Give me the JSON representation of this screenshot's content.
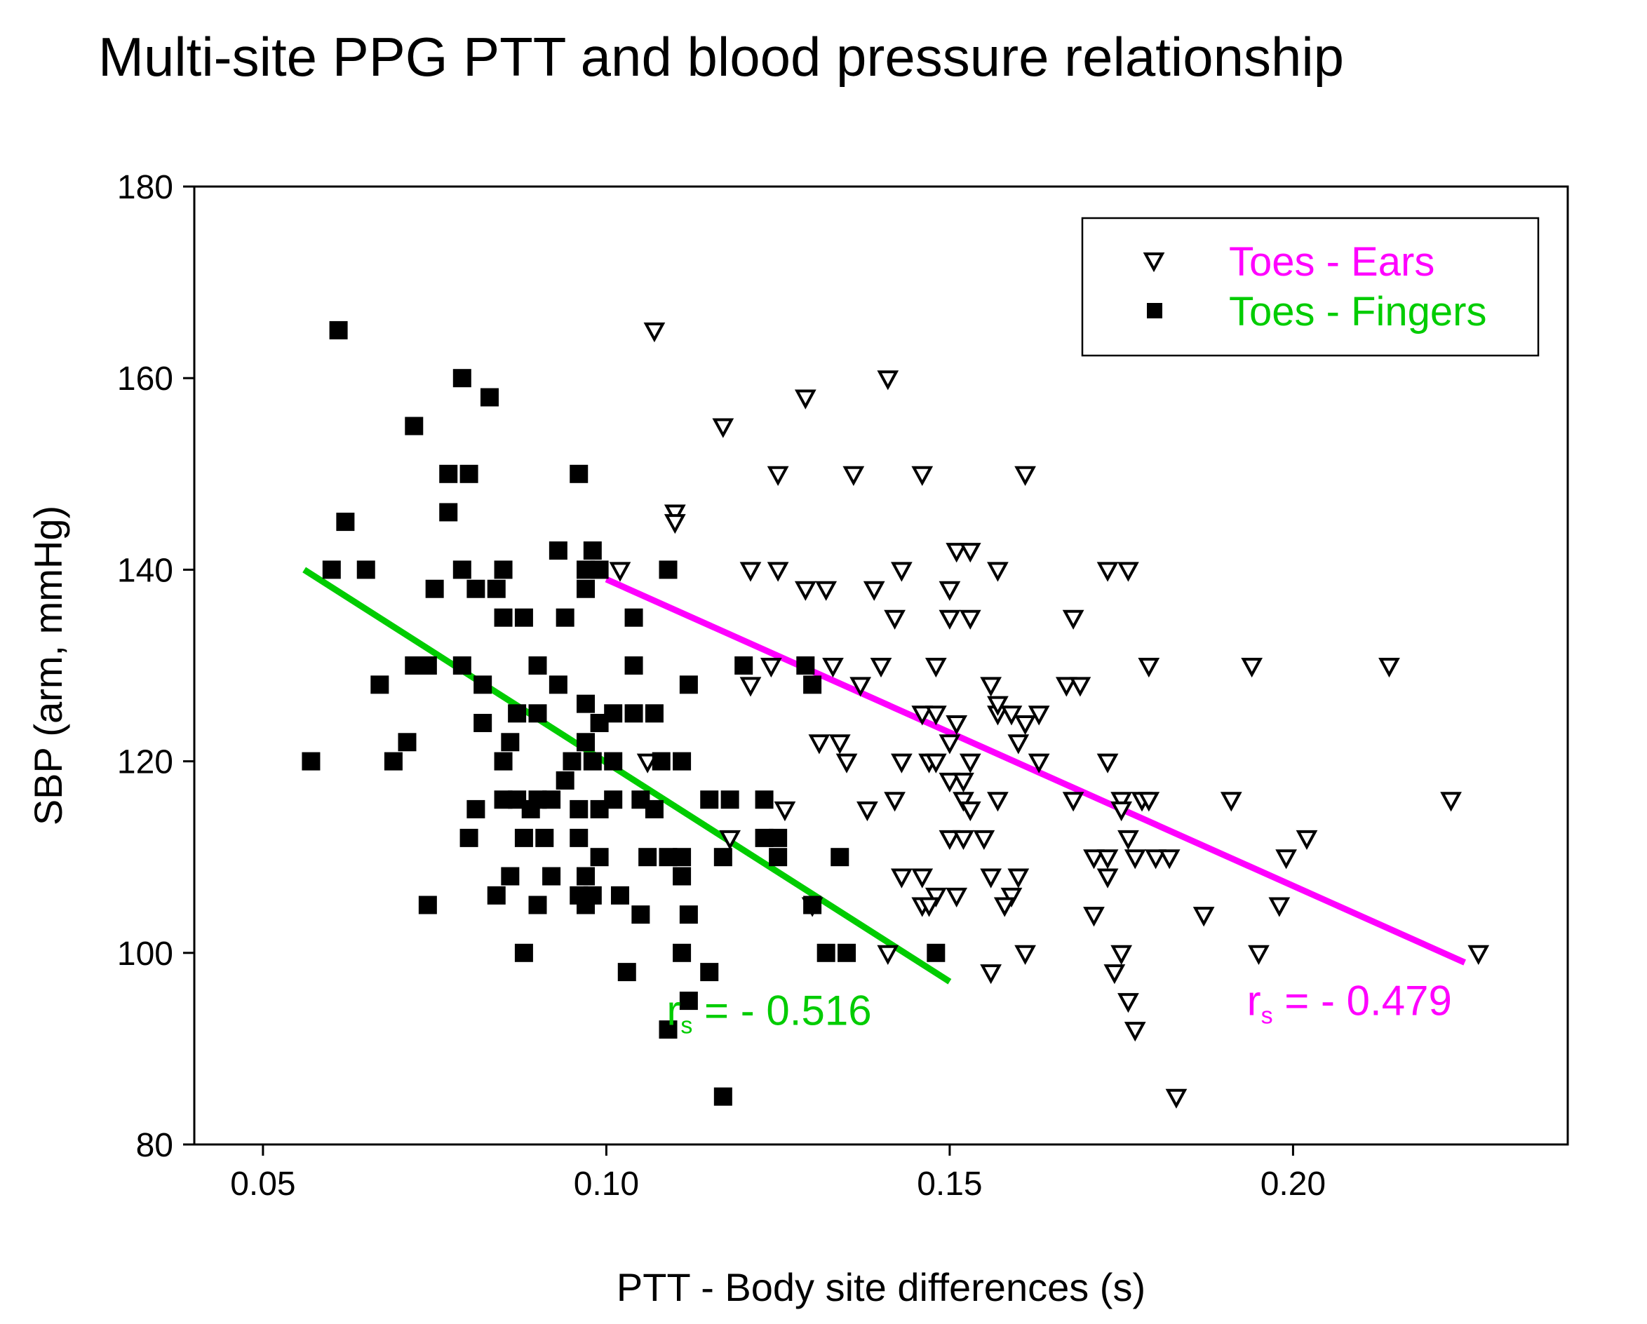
{
  "chart_data": {
    "type": "scatter",
    "title": "Multi-site PPG PTT and blood pressure relationship",
    "xlabel": "PTT - Body site differences (s)",
    "ylabel": "SBP (arm, mmHg)",
    "xlim": [
      0.04,
      0.24
    ],
    "ylim": [
      80,
      180
    ],
    "xticks": [
      0.05,
      0.1,
      0.15,
      0.2
    ],
    "xtick_labels": [
      "0.05",
      "0.10",
      "0.15",
      "0.20"
    ],
    "yticks": [
      80,
      100,
      120,
      140,
      160,
      180
    ],
    "ytick_labels": [
      "80",
      "100",
      "120",
      "140",
      "160",
      "180"
    ],
    "grid": false,
    "legend_position": "top-right",
    "series": [
      {
        "name": "Toes - Ears",
        "marker": "triangle-down-open",
        "label_color": "#ff00ff",
        "points": [
          [
            0.107,
            165
          ],
          [
            0.141,
            160
          ],
          [
            0.129,
            158
          ],
          [
            0.117,
            155
          ],
          [
            0.125,
            150
          ],
          [
            0.136,
            150
          ],
          [
            0.146,
            150
          ],
          [
            0.161,
            150
          ],
          [
            0.11,
            146
          ],
          [
            0.11,
            145
          ],
          [
            0.151,
            142
          ],
          [
            0.153,
            142
          ],
          [
            0.102,
            140
          ],
          [
            0.121,
            140
          ],
          [
            0.125,
            140
          ],
          [
            0.143,
            140
          ],
          [
            0.157,
            140
          ],
          [
            0.173,
            140
          ],
          [
            0.176,
            140
          ],
          [
            0.129,
            138
          ],
          [
            0.132,
            138
          ],
          [
            0.139,
            138
          ],
          [
            0.15,
            138
          ],
          [
            0.142,
            135
          ],
          [
            0.15,
            135
          ],
          [
            0.153,
            135
          ],
          [
            0.168,
            135
          ],
          [
            0.124,
            130
          ],
          [
            0.133,
            130
          ],
          [
            0.14,
            130
          ],
          [
            0.148,
            130
          ],
          [
            0.179,
            130
          ],
          [
            0.194,
            130
          ],
          [
            0.214,
            130
          ],
          [
            0.121,
            128
          ],
          [
            0.137,
            128
          ],
          [
            0.156,
            128
          ],
          [
            0.167,
            128
          ],
          [
            0.169,
            128
          ],
          [
            0.146,
            125
          ],
          [
            0.148,
            125
          ],
          [
            0.157,
            125
          ],
          [
            0.159,
            125
          ],
          [
            0.163,
            125
          ],
          [
            0.157,
            126
          ],
          [
            0.151,
            124
          ],
          [
            0.161,
            124
          ],
          [
            0.15,
            122
          ],
          [
            0.16,
            122
          ],
          [
            0.131,
            122
          ],
          [
            0.134,
            122
          ],
          [
            0.106,
            120
          ],
          [
            0.135,
            120
          ],
          [
            0.143,
            120
          ],
          [
            0.147,
            120
          ],
          [
            0.148,
            120
          ],
          [
            0.153,
            120
          ],
          [
            0.163,
            120
          ],
          [
            0.173,
            120
          ],
          [
            0.15,
            118
          ],
          [
            0.152,
            118
          ],
          [
            0.142,
            116
          ],
          [
            0.152,
            116
          ],
          [
            0.157,
            116
          ],
          [
            0.168,
            116
          ],
          [
            0.175,
            116
          ],
          [
            0.178,
            116
          ],
          [
            0.179,
            116
          ],
          [
            0.191,
            116
          ],
          [
            0.223,
            116
          ],
          [
            0.126,
            115
          ],
          [
            0.138,
            115
          ],
          [
            0.153,
            115
          ],
          [
            0.175,
            115
          ],
          [
            0.176,
            112
          ],
          [
            0.15,
            112
          ],
          [
            0.152,
            112
          ],
          [
            0.155,
            112
          ],
          [
            0.202,
            112
          ],
          [
            0.118,
            112
          ],
          [
            0.171,
            110
          ],
          [
            0.173,
            110
          ],
          [
            0.177,
            110
          ],
          [
            0.18,
            110
          ],
          [
            0.182,
            110
          ],
          [
            0.199,
            110
          ],
          [
            0.143,
            108
          ],
          [
            0.146,
            108
          ],
          [
            0.156,
            108
          ],
          [
            0.16,
            108
          ],
          [
            0.173,
            108
          ],
          [
            0.159,
            106
          ],
          [
            0.148,
            106
          ],
          [
            0.151,
            106
          ],
          [
            0.146,
            105
          ],
          [
            0.147,
            105
          ],
          [
            0.158,
            105
          ],
          [
            0.198,
            105
          ],
          [
            0.13,
            105
          ],
          [
            0.171,
            104
          ],
          [
            0.187,
            104
          ],
          [
            0.141,
            100
          ],
          [
            0.161,
            100
          ],
          [
            0.175,
            100
          ],
          [
            0.195,
            100
          ],
          [
            0.227,
            100
          ],
          [
            0.156,
            98
          ],
          [
            0.174,
            98
          ],
          [
            0.176,
            95
          ],
          [
            0.177,
            92
          ],
          [
            0.183,
            85
          ]
        ]
      },
      {
        "name": "Toes - Fingers",
        "marker": "square-filled",
        "label_color": "#00cc00",
        "points": [
          [
            0.061,
            165
          ],
          [
            0.079,
            160
          ],
          [
            0.083,
            158
          ],
          [
            0.072,
            155
          ],
          [
            0.077,
            150
          ],
          [
            0.08,
            150
          ],
          [
            0.096,
            150
          ],
          [
            0.077,
            146
          ],
          [
            0.062,
            145
          ],
          [
            0.093,
            142
          ],
          [
            0.098,
            142
          ],
          [
            0.06,
            140
          ],
          [
            0.065,
            140
          ],
          [
            0.079,
            140
          ],
          [
            0.085,
            140
          ],
          [
            0.097,
            140
          ],
          [
            0.099,
            140
          ],
          [
            0.109,
            140
          ],
          [
            0.075,
            138
          ],
          [
            0.081,
            138
          ],
          [
            0.084,
            138
          ],
          [
            0.097,
            138
          ],
          [
            0.085,
            135
          ],
          [
            0.088,
            135
          ],
          [
            0.094,
            135
          ],
          [
            0.104,
            135
          ],
          [
            0.072,
            130
          ],
          [
            0.074,
            130
          ],
          [
            0.079,
            130
          ],
          [
            0.09,
            130
          ],
          [
            0.104,
            130
          ],
          [
            0.12,
            130
          ],
          [
            0.129,
            130
          ],
          [
            0.067,
            128
          ],
          [
            0.082,
            128
          ],
          [
            0.093,
            128
          ],
          [
            0.112,
            128
          ],
          [
            0.13,
            128
          ],
          [
            0.087,
            125
          ],
          [
            0.09,
            125
          ],
          [
            0.101,
            125
          ],
          [
            0.104,
            125
          ],
          [
            0.107,
            125
          ],
          [
            0.097,
            126
          ],
          [
            0.082,
            124
          ],
          [
            0.099,
            124
          ],
          [
            0.071,
            122
          ],
          [
            0.086,
            122
          ],
          [
            0.097,
            122
          ],
          [
            0.057,
            120
          ],
          [
            0.069,
            120
          ],
          [
            0.085,
            120
          ],
          [
            0.095,
            120
          ],
          [
            0.098,
            120
          ],
          [
            0.101,
            120
          ],
          [
            0.108,
            120
          ],
          [
            0.111,
            120
          ],
          [
            0.094,
            118
          ],
          [
            0.085,
            116
          ],
          [
            0.087,
            116
          ],
          [
            0.09,
            116
          ],
          [
            0.092,
            116
          ],
          [
            0.101,
            116
          ],
          [
            0.105,
            116
          ],
          [
            0.115,
            116
          ],
          [
            0.118,
            116
          ],
          [
            0.123,
            116
          ],
          [
            0.081,
            115
          ],
          [
            0.089,
            115
          ],
          [
            0.096,
            115
          ],
          [
            0.099,
            115
          ],
          [
            0.107,
            115
          ],
          [
            0.08,
            112
          ],
          [
            0.088,
            112
          ],
          [
            0.091,
            112
          ],
          [
            0.096,
            112
          ],
          [
            0.123,
            112
          ],
          [
            0.125,
            112
          ],
          [
            0.099,
            110
          ],
          [
            0.106,
            110
          ],
          [
            0.109,
            110
          ],
          [
            0.111,
            110
          ],
          [
            0.117,
            110
          ],
          [
            0.125,
            110
          ],
          [
            0.134,
            110
          ],
          [
            0.086,
            108
          ],
          [
            0.092,
            108
          ],
          [
            0.097,
            108
          ],
          [
            0.111,
            108
          ],
          [
            0.084,
            106
          ],
          [
            0.096,
            106
          ],
          [
            0.098,
            106
          ],
          [
            0.102,
            106
          ],
          [
            0.074,
            105
          ],
          [
            0.09,
            105
          ],
          [
            0.097,
            105
          ],
          [
            0.13,
            105
          ],
          [
            0.105,
            104
          ],
          [
            0.112,
            104
          ],
          [
            0.088,
            100
          ],
          [
            0.111,
            100
          ],
          [
            0.132,
            100
          ],
          [
            0.135,
            100
          ],
          [
            0.148,
            100
          ],
          [
            0.103,
            98
          ],
          [
            0.115,
            98
          ],
          [
            0.112,
            95
          ],
          [
            0.109,
            92
          ],
          [
            0.117,
            85
          ]
        ]
      }
    ],
    "regression_lines": [
      {
        "name": "Toes - Fingers fit",
        "color": "#00cc00",
        "x": [
          0.056,
          0.15
        ],
        "y": [
          140,
          97
        ]
      },
      {
        "name": "Toes - Ears fit",
        "color": "#ff00ff",
        "x": [
          0.1,
          0.225
        ],
        "y": [
          139,
          99
        ]
      }
    ],
    "annotations": [
      {
        "name": "rs-fingers",
        "main": "r",
        "sub": "s",
        "rest": "  = - 0.516",
        "color": "#00cc00",
        "anchor_x": 0.119,
        "anchor_y": 92.5
      },
      {
        "name": "rs-ears",
        "main": "r",
        "sub": "s",
        "rest": " = - 0.479",
        "color": "#ff00ff",
        "anchor_x": 0.2035,
        "anchor_y": 93.5
      }
    ]
  }
}
